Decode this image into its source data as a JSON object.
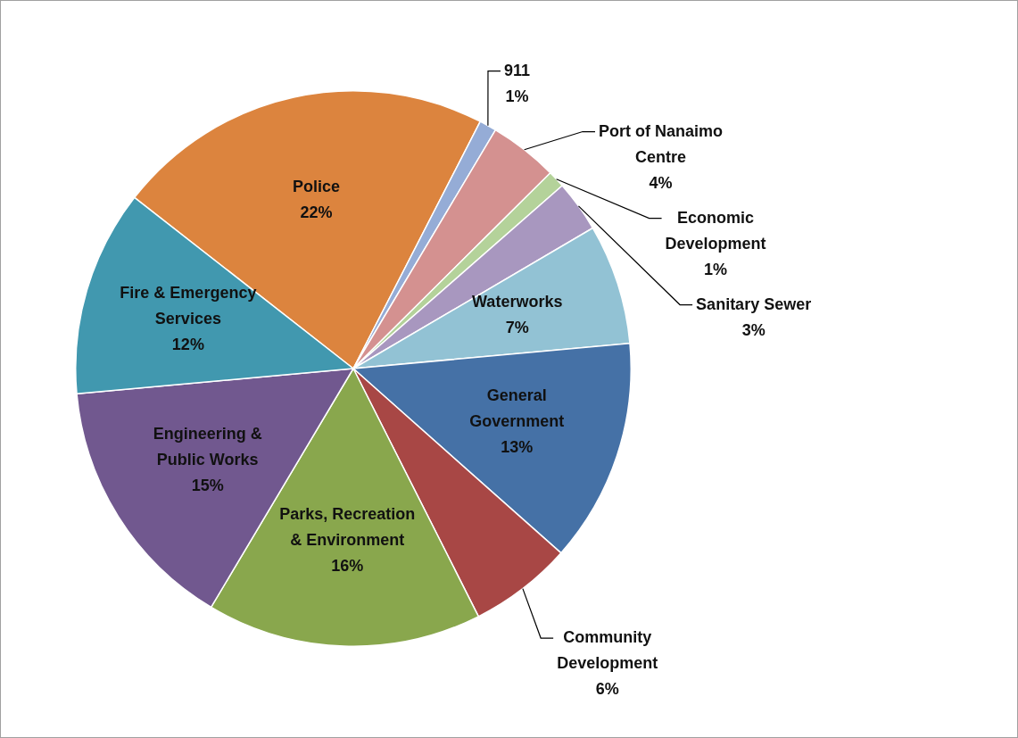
{
  "chart_data": {
    "type": "pie",
    "categories": [
      "Police",
      "911",
      "Port of Nanaimo Centre",
      "Economic Development",
      "Sanitary Sewer",
      "Waterworks",
      "General Government",
      "Community Development",
      "Parks, Recreation & Environment",
      "Engineering & Public Works",
      "Fire & Emergency Services"
    ],
    "values": [
      22,
      1,
      4,
      1,
      3,
      7,
      13,
      6,
      16,
      15,
      12
    ],
    "value_labels": [
      "22%",
      "1%",
      "4%",
      "1%",
      "3%",
      "7%",
      "13%",
      "6%",
      "16%",
      "15%",
      "12%"
    ],
    "colors": [
      "#dc843e",
      "#95acd6",
      "#d49190",
      "#b4d29a",
      "#a897bf",
      "#92c2d4",
      "#4571a6",
      "#a84745",
      "#89a74d",
      "#71588f",
      "#4198af"
    ],
    "legend": false
  }
}
